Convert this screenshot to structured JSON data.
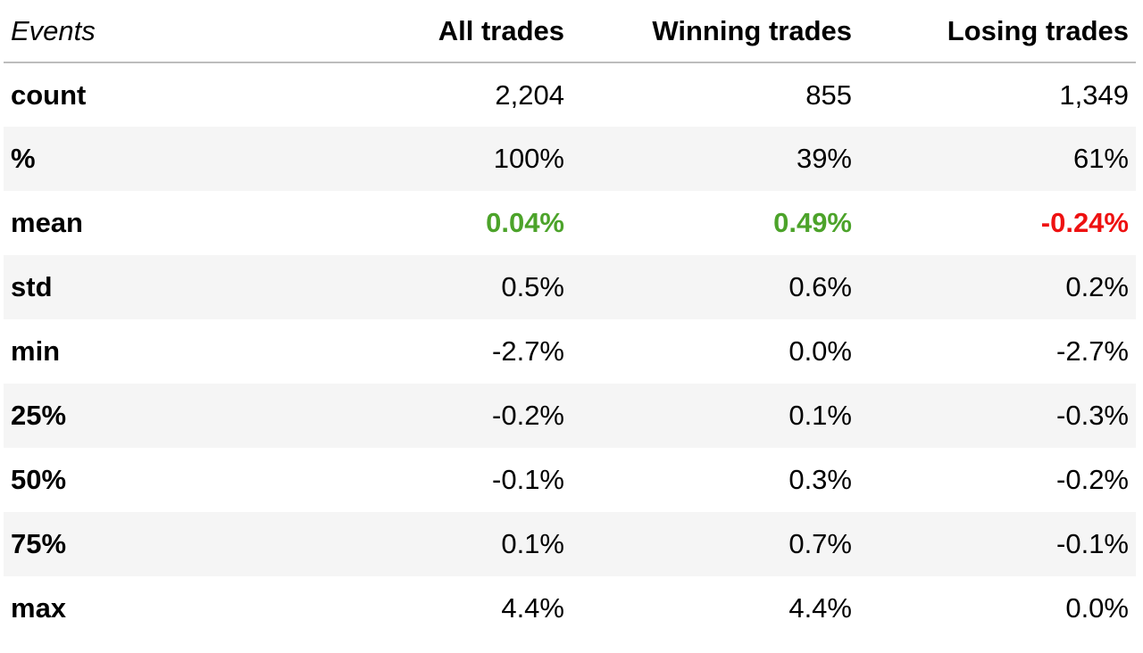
{
  "chart_data": {
    "type": "table",
    "columns": [
      "Events",
      "All trades",
      "Winning trades",
      "Losing trades"
    ],
    "rows": [
      {
        "label": "count",
        "values": [
          "2,204",
          "855",
          "1,349"
        ]
      },
      {
        "label": "%",
        "values": [
          "100%",
          "39%",
          "61%"
        ]
      },
      {
        "label": "mean",
        "values": [
          "0.04%",
          "0.49%",
          "-0.24%"
        ]
      },
      {
        "label": "std",
        "values": [
          "0.5%",
          "0.6%",
          "0.2%"
        ]
      },
      {
        "label": "min",
        "values": [
          "-2.7%",
          "0.0%",
          "-2.7%"
        ]
      },
      {
        "label": "25%",
        "values": [
          "-0.2%",
          "0.1%",
          "-0.3%"
        ]
      },
      {
        "label": "50%",
        "values": [
          "-0.1%",
          "0.3%",
          "-0.2%"
        ]
      },
      {
        "label": "75%",
        "values": [
          "0.1%",
          "0.7%",
          "-0.1%"
        ]
      },
      {
        "label": "max",
        "values": [
          "4.4%",
          "4.4%",
          "0.0%"
        ]
      }
    ],
    "colors": {
      "positive": "#4ca32a",
      "negative": "#ee1111",
      "stripe": "#f5f5f5"
    }
  }
}
